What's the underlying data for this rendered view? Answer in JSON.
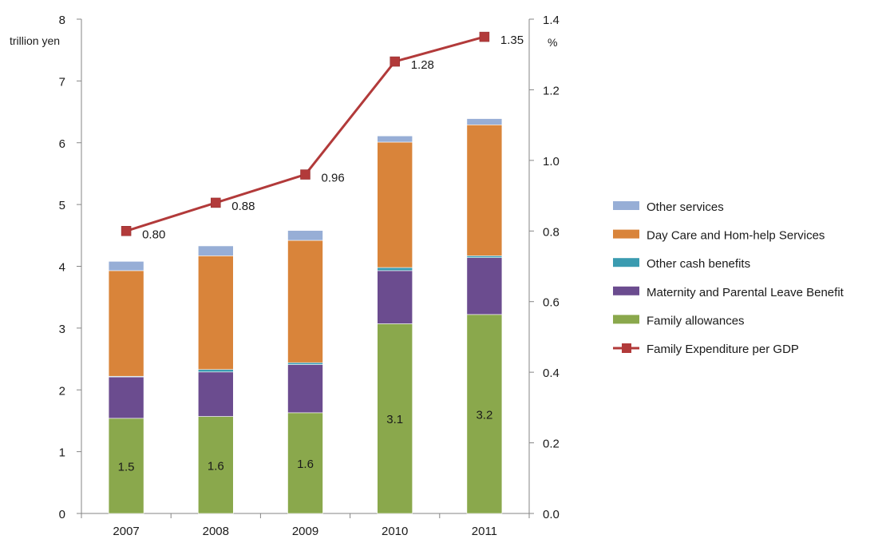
{
  "chart_data": {
    "type": "bar",
    "stacked": true,
    "categories": [
      "2007",
      "2008",
      "2009",
      "2010",
      "2011"
    ],
    "left_axis": {
      "unit": "trillion yen",
      "ylim": [
        0,
        8
      ],
      "ticks": [
        "0",
        "1",
        "2",
        "3",
        "4",
        "5",
        "6",
        "7",
        "8"
      ]
    },
    "right_axis": {
      "unit": "%",
      "ylim": [
        0,
        1.4
      ],
      "ticks": [
        "0.0",
        "0.2",
        "0.4",
        "0.6",
        "0.8",
        "1.0",
        "1.2",
        "1.4"
      ]
    },
    "series": [
      {
        "name": "Family allowances",
        "values": [
          1.54,
          1.57,
          1.63,
          3.07,
          3.22
        ],
        "color": "#8aa84c",
        "labels": [
          "1.5",
          "1.6",
          "1.6",
          "3.1",
          "3.2"
        ]
      },
      {
        "name": "Maternity and Parental Leave Benefit",
        "values": [
          0.67,
          0.72,
          0.78,
          0.86,
          0.92
        ],
        "color": "#6b4c8f"
      },
      {
        "name": "Other cash benefits",
        "values": [
          0.01,
          0.04,
          0.03,
          0.05,
          0.03
        ],
        "color": "#3a9bb0"
      },
      {
        "name": "Day Care and Hom-help Services",
        "values": [
          1.71,
          1.84,
          1.98,
          2.03,
          2.12
        ],
        "color": "#d9843a"
      },
      {
        "name": "Other services",
        "values": [
          0.15,
          0.16,
          0.16,
          0.1,
          0.1
        ],
        "color": "#97aed6"
      }
    ],
    "line": {
      "name": "Family Expenditure per GDP",
      "values": [
        0.8,
        0.88,
        0.96,
        1.28,
        1.35
      ],
      "labels": [
        "0.80",
        "0.88",
        "0.96",
        "1.28",
        "1.35"
      ],
      "color": "#b23a3a",
      "axis": "right"
    },
    "legend_order": [
      "Other services",
      "Day Care and Hom-help Services",
      "Other cash benefits",
      "Maternity and Parental Leave Benefit",
      "Family allowances",
      "Family Expenditure per GDP"
    ],
    "legend_position": "right",
    "grid": false
  }
}
